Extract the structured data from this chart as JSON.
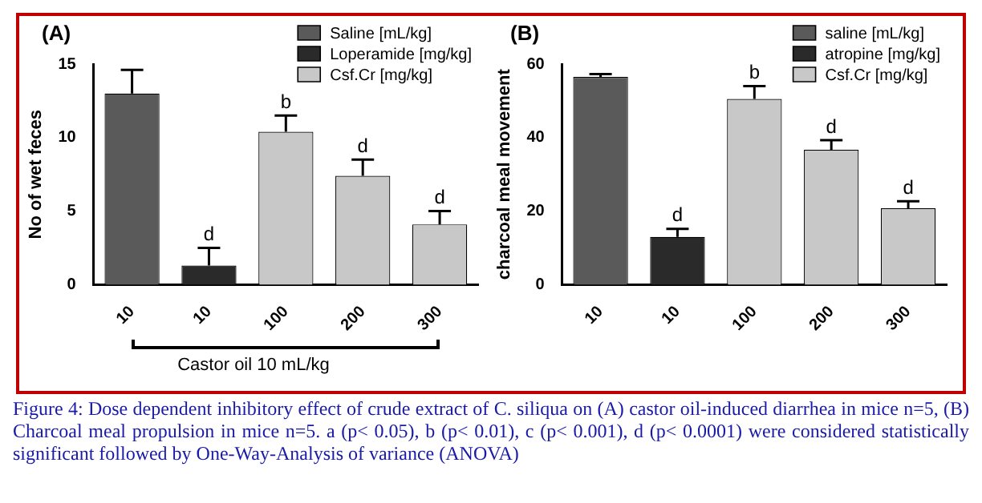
{
  "chart_data": [
    {
      "type": "bar",
      "title": "(A)",
      "ylabel": "No of wet feces",
      "categories": [
        "10",
        "10",
        "100",
        "200",
        "300"
      ],
      "ylim": [
        0,
        15
      ],
      "yticks": [
        0,
        5,
        10,
        15
      ],
      "legend": "top right",
      "annotations": [
        "Castor oil 10 mL/kg"
      ],
      "series": [
        {
          "name": "Saline [mL/kg]",
          "color": "#5a5a5a",
          "values": [
            13,
            null,
            null,
            null,
            null
          ],
          "errors": [
            [
              13,
              14.6
            ],
            null,
            null,
            null,
            null
          ]
        },
        {
          "name": "Loperamide [mg/kg]",
          "color": "#2a2a2a",
          "values": [
            null,
            1.3,
            null,
            null,
            null
          ],
          "errors": [
            null,
            [
              1.3,
              2.5
            ],
            null,
            null,
            null
          ],
          "value_labels": [
            null,
            "d",
            null,
            null,
            null
          ]
        },
        {
          "name": "Csf.Cr [mg/kg]",
          "color": "#c8c8c8",
          "values": [
            null,
            null,
            10.4,
            7.4,
            4.1
          ],
          "errors": [
            null,
            null,
            [
              10.4,
              11.5
            ],
            [
              7.4,
              8.5
            ],
            [
              4.1,
              5
            ]
          ],
          "value_labels": [
            null,
            null,
            "b",
            "d",
            "d"
          ]
        }
      ]
    },
    {
      "type": "bar",
      "title": "(B)",
      "ylabel": "charcoal meal movement",
      "categories": [
        "10",
        "10",
        "100",
        "200",
        "300"
      ],
      "ylim": [
        0,
        60
      ],
      "yticks": [
        0,
        20,
        40,
        60
      ],
      "legend": "top right",
      "annotations": [
        "Figure 4: Dose dependent inhibitory effect of crude extract of C. siliqua on (A) castor oil-induced diarrhea in mice n=5, (B) Charcoal meal propulsion in mice n=5. a (p< 0.05), b (p< 0.01), c (p< 0.001), d (p< 0.0001) were considered statistically significant followed by One-Way-Analysis of variance (ANOVA)"
      ],
      "series": [
        {
          "name": "saline [mL/kg]",
          "color": "#5a5a5a",
          "values": [
            56.5,
            null,
            null,
            null,
            null
          ],
          "errors": [
            [
              56.5,
              57.3
            ],
            null,
            null,
            null,
            null
          ]
        },
        {
          "name": "atropine [mg/kg]",
          "color": "#2a2a2a",
          "values": [
            null,
            13,
            null,
            null,
            null
          ],
          "errors": [
            null,
            [
              13,
              15.2
            ],
            null,
            null,
            null
          ],
          "value_labels": [
            null,
            "d",
            null,
            null,
            null
          ]
        },
        {
          "name": "Csf.Cr [mg/kg]",
          "color": "#c8c8c8",
          "values": [
            null,
            null,
            50.5,
            36.7,
            20.8
          ],
          "errors": [
            null,
            null,
            [
              50.5,
              54
            ],
            [
              36.7,
              39.3
            ],
            [
              20.8,
              22.7
            ]
          ],
          "value_labels": [
            null,
            null,
            "b",
            "d",
            "d"
          ]
        }
      ]
    }
  ]
}
